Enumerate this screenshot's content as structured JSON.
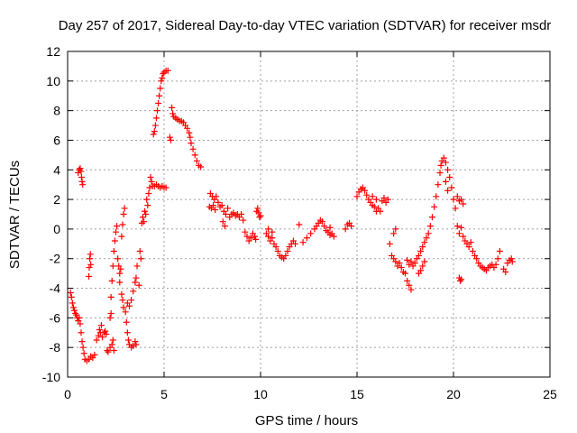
{
  "chart_data": {
    "type": "scatter",
    "title": "Day 257 of 2017, Sidereal Day-to-day VTEC variation (SDTVAR) for receiver msdr",
    "xlabel": "GPS time / hours",
    "ylabel": "SDTVAR / TECUs",
    "xlim": [
      0,
      25
    ],
    "ylim": [
      -10,
      12
    ],
    "xticks": [
      0,
      5,
      10,
      15,
      20,
      25
    ],
    "yticks": [
      -10,
      -8,
      -6,
      -4,
      -2,
      0,
      2,
      4,
      6,
      8,
      10,
      12
    ],
    "grid": true,
    "marker": "+",
    "color": "#ff0000",
    "series": [
      {
        "name": "SDTVAR",
        "points": [
          [
            0.15,
            -4.3
          ],
          [
            0.2,
            -4.6
          ],
          [
            0.25,
            -5.0
          ],
          [
            0.3,
            -5.3
          ],
          [
            0.35,
            -5.5
          ],
          [
            0.4,
            -5.7
          ],
          [
            0.45,
            -5.8
          ],
          [
            0.5,
            -6.0
          ],
          [
            0.55,
            -6.2
          ],
          [
            0.6,
            -6.0
          ],
          [
            0.65,
            -6.4
          ],
          [
            0.7,
            -7.0
          ],
          [
            0.75,
            -7.6
          ],
          [
            0.8,
            -8.0
          ],
          [
            0.85,
            -8.4
          ],
          [
            0.9,
            -8.8
          ],
          [
            1.0,
            -8.9
          ],
          [
            1.1,
            -8.8
          ],
          [
            1.2,
            -8.6
          ],
          [
            1.3,
            -8.7
          ],
          [
            1.4,
            -8.5
          ],
          [
            0.55,
            3.8
          ],
          [
            0.6,
            4.0
          ],
          [
            0.65,
            4.1
          ],
          [
            0.7,
            3.9
          ],
          [
            0.72,
            3.5
          ],
          [
            0.75,
            3.2
          ],
          [
            0.78,
            3.0
          ],
          [
            1.1,
            -3.2
          ],
          [
            1.12,
            -2.6
          ],
          [
            1.15,
            -2.0
          ],
          [
            1.18,
            -1.7
          ],
          [
            1.2,
            -2.4
          ],
          [
            1.5,
            -7.5
          ],
          [
            1.6,
            -7.2
          ],
          [
            1.65,
            -6.8
          ],
          [
            1.7,
            -7.0
          ],
          [
            1.75,
            -6.5
          ],
          [
            1.8,
            -7.3
          ],
          [
            1.9,
            -7.0
          ],
          [
            1.95,
            -6.9
          ],
          [
            2.0,
            -7.1
          ],
          [
            2.05,
            -8.2
          ],
          [
            2.1,
            -8.3
          ],
          [
            2.2,
            -8.0
          ],
          [
            2.3,
            -7.8
          ],
          [
            2.35,
            -7.5
          ],
          [
            2.4,
            -8.2
          ],
          [
            2.2,
            -6.0
          ],
          [
            2.25,
            -5.7
          ],
          [
            2.25,
            -4.6
          ],
          [
            2.3,
            -3.5
          ],
          [
            2.35,
            -2.5
          ],
          [
            2.4,
            -1.5
          ],
          [
            2.45,
            -0.8
          ],
          [
            2.5,
            -0.2
          ],
          [
            2.55,
            0.2
          ],
          [
            2.6,
            -2.0
          ],
          [
            2.65,
            -2.5
          ],
          [
            2.7,
            -3.0
          ],
          [
            2.75,
            -2.7
          ],
          [
            2.8,
            -0.5
          ],
          [
            2.85,
            0.3
          ],
          [
            2.9,
            1.0
          ],
          [
            2.95,
            1.4
          ],
          [
            2.7,
            -3.6
          ],
          [
            2.8,
            -4.4
          ],
          [
            2.85,
            -4.8
          ],
          [
            2.9,
            -5.3
          ],
          [
            3.0,
            -5.6
          ],
          [
            3.05,
            -6.3
          ],
          [
            3.1,
            -7.0
          ],
          [
            3.15,
            -7.5
          ],
          [
            3.2,
            -7.8
          ],
          [
            3.3,
            -8.0
          ],
          [
            3.4,
            -7.9
          ],
          [
            3.5,
            -7.6
          ],
          [
            3.55,
            -7.8
          ],
          [
            3.1,
            -5.0
          ],
          [
            3.2,
            -5.2
          ],
          [
            3.3,
            -4.8
          ],
          [
            3.4,
            -4.2
          ],
          [
            3.5,
            -3.6
          ],
          [
            3.55,
            -3.3
          ],
          [
            3.6,
            -2.5
          ],
          [
            3.7,
            -3.8
          ],
          [
            3.75,
            -1.5
          ],
          [
            3.8,
            -2.0
          ],
          [
            3.85,
            0.4
          ],
          [
            3.9,
            0.8
          ],
          [
            3.95,
            0.5
          ],
          [
            4.0,
            1.2
          ],
          [
            4.05,
            1.0
          ],
          [
            4.1,
            2.0
          ],
          [
            4.15,
            1.6
          ],
          [
            4.2,
            2.4
          ],
          [
            4.25,
            2.8
          ],
          [
            4.3,
            3.5
          ],
          [
            4.35,
            3.2
          ],
          [
            4.4,
            2.9
          ],
          [
            4.5,
            2.9
          ],
          [
            4.6,
            3.0
          ],
          [
            4.7,
            2.9
          ],
          [
            4.8,
            2.8
          ],
          [
            4.9,
            2.9
          ],
          [
            5.0,
            2.8
          ],
          [
            5.1,
            2.8
          ],
          [
            4.45,
            6.4
          ],
          [
            4.5,
            6.6
          ],
          [
            4.55,
            7.0
          ],
          [
            4.6,
            7.5
          ],
          [
            4.65,
            8.0
          ],
          [
            4.7,
            8.5
          ],
          [
            4.75,
            9.0
          ],
          [
            4.8,
            9.5
          ],
          [
            4.85,
            10.0
          ],
          [
            4.9,
            10.2
          ],
          [
            4.95,
            10.5
          ],
          [
            5.0,
            10.6
          ],
          [
            5.1,
            10.7
          ],
          [
            5.2,
            10.7
          ],
          [
            5.3,
            6.2
          ],
          [
            5.35,
            6.0
          ],
          [
            5.4,
            8.2
          ],
          [
            5.45,
            7.8
          ],
          [
            5.5,
            7.6
          ],
          [
            5.6,
            7.5
          ],
          [
            5.7,
            7.4
          ],
          [
            5.8,
            7.3
          ],
          [
            5.9,
            7.3
          ],
          [
            6.0,
            7.2
          ],
          [
            6.1,
            7.0
          ],
          [
            6.2,
            6.8
          ],
          [
            6.3,
            6.5
          ],
          [
            6.35,
            6.2
          ],
          [
            6.4,
            5.8
          ],
          [
            6.5,
            5.4
          ],
          [
            6.6,
            5.0
          ],
          [
            6.7,
            4.6
          ],
          [
            6.8,
            4.3
          ],
          [
            6.9,
            4.2
          ],
          [
            7.4,
            2.4
          ],
          [
            7.5,
            2.2
          ],
          [
            7.6,
            2.0
          ],
          [
            7.7,
            2.2
          ],
          [
            7.8,
            1.8
          ],
          [
            7.9,
            1.5
          ],
          [
            8.0,
            1.6
          ],
          [
            8.1,
            1.2
          ],
          [
            8.2,
            1.0
          ],
          [
            8.3,
            1.4
          ],
          [
            8.4,
            0.8
          ],
          [
            8.5,
            1.0
          ],
          [
            8.6,
            1.1
          ],
          [
            8.7,
            0.9
          ],
          [
            8.8,
            1.0
          ],
          [
            8.9,
            0.8
          ],
          [
            9.0,
            1.0
          ],
          [
            9.1,
            0.6
          ],
          [
            9.2,
            -0.2
          ],
          [
            9.3,
            -0.5
          ],
          [
            9.4,
            -0.8
          ],
          [
            9.5,
            -0.6
          ],
          [
            9.6,
            -0.3
          ],
          [
            7.35,
            1.5
          ],
          [
            7.45,
            1.4
          ],
          [
            7.55,
            1.6
          ],
          [
            7.65,
            1.3
          ],
          [
            8.05,
            0.5
          ],
          [
            8.15,
            0.2
          ],
          [
            9.8,
            1.2
          ],
          [
            9.85,
            1.4
          ],
          [
            9.9,
            1.1
          ],
          [
            9.95,
            0.8
          ],
          [
            10.0,
            0.9
          ],
          [
            9.7,
            -0.5
          ],
          [
            9.75,
            -0.7
          ],
          [
            10.3,
            -0.3
          ],
          [
            10.4,
            -0.5
          ],
          [
            10.5,
            -0.8
          ],
          [
            10.6,
            -0.6
          ],
          [
            10.7,
            -1.0
          ],
          [
            10.8,
            -1.2
          ],
          [
            10.9,
            -1.5
          ],
          [
            11.0,
            -1.8
          ],
          [
            11.1,
            -1.9
          ],
          [
            11.2,
            -2.0
          ],
          [
            11.3,
            -1.8
          ],
          [
            11.4,
            -1.5
          ],
          [
            11.5,
            -1.2
          ],
          [
            11.6,
            -1.0
          ],
          [
            11.7,
            -0.8
          ],
          [
            11.8,
            -1.0
          ],
          [
            12.0,
            0.3
          ],
          [
            10.4,
            0.0
          ],
          [
            10.6,
            -0.2
          ],
          [
            12.2,
            -0.9
          ],
          [
            12.4,
            -0.6
          ],
          [
            12.6,
            -0.3
          ],
          [
            12.8,
            0.0
          ],
          [
            12.9,
            0.2
          ],
          [
            13.0,
            0.4
          ],
          [
            13.1,
            0.6
          ],
          [
            13.2,
            0.5
          ],
          [
            13.3,
            0.2
          ],
          [
            13.4,
            -0.1
          ],
          [
            13.5,
            -0.2
          ],
          [
            13.6,
            -0.4
          ],
          [
            13.7,
            -0.3
          ],
          [
            13.8,
            -0.5
          ],
          [
            13.6,
            0.1
          ],
          [
            14.4,
            0.0
          ],
          [
            14.5,
            0.3
          ],
          [
            14.6,
            0.4
          ],
          [
            14.7,
            0.2
          ],
          [
            15.0,
            2.2
          ],
          [
            15.1,
            2.5
          ],
          [
            15.2,
            2.7
          ],
          [
            15.3,
            2.8
          ],
          [
            15.4,
            2.6
          ],
          [
            15.5,
            2.3
          ],
          [
            15.6,
            2.0
          ],
          [
            15.7,
            1.8
          ],
          [
            15.8,
            1.6
          ],
          [
            15.9,
            1.5
          ],
          [
            16.0,
            1.2
          ],
          [
            16.1,
            1.4
          ],
          [
            16.2,
            1.2
          ],
          [
            16.3,
            1.9
          ],
          [
            16.4,
            2.1
          ],
          [
            16.5,
            1.8
          ],
          [
            16.6,
            2.0
          ],
          [
            15.8,
            2.2
          ],
          [
            16.0,
            2.0
          ],
          [
            16.7,
            -1.0
          ],
          [
            16.8,
            -1.8
          ],
          [
            16.9,
            -2.0
          ],
          [
            17.0,
            -2.2
          ],
          [
            17.1,
            -2.5
          ],
          [
            17.2,
            -2.3
          ],
          [
            17.3,
            -2.6
          ],
          [
            17.4,
            -2.9
          ],
          [
            17.5,
            -3.0
          ],
          [
            17.6,
            -3.5
          ],
          [
            17.7,
            -3.8
          ],
          [
            17.8,
            -4.1
          ],
          [
            17.6,
            -2.1
          ],
          [
            17.7,
            -2.4
          ],
          [
            17.8,
            -2.2
          ],
          [
            17.9,
            -2.5
          ],
          [
            18.0,
            -2.3
          ],
          [
            18.1,
            -2.0
          ],
          [
            18.2,
            -1.8
          ],
          [
            18.3,
            -1.5
          ],
          [
            18.4,
            -1.2
          ],
          [
            18.5,
            -0.9
          ],
          [
            18.6,
            -0.6
          ],
          [
            18.7,
            -0.3
          ],
          [
            16.9,
            -0.3
          ],
          [
            17.0,
            0.0
          ],
          [
            18.2,
            -3.0
          ],
          [
            18.3,
            -2.8
          ],
          [
            18.4,
            -2.5
          ],
          [
            18.5,
            -2.2
          ],
          [
            18.8,
            0.2
          ],
          [
            18.9,
            0.8
          ],
          [
            19.0,
            1.5
          ],
          [
            19.1,
            2.2
          ],
          [
            19.2,
            3.0
          ],
          [
            19.3,
            3.8
          ],
          [
            19.35,
            4.3
          ],
          [
            19.4,
            4.6
          ],
          [
            19.5,
            4.8
          ],
          [
            19.6,
            4.5
          ],
          [
            19.7,
            4.0
          ],
          [
            19.8,
            3.5
          ],
          [
            19.9,
            2.8
          ],
          [
            20.0,
            2.0
          ],
          [
            20.1,
            1.4
          ],
          [
            19.6,
            3.2
          ],
          [
            19.7,
            2.6
          ],
          [
            20.2,
            2.2
          ],
          [
            20.3,
            1.9
          ],
          [
            20.4,
            2.0
          ],
          [
            20.5,
            1.7
          ],
          [
            20.2,
            0.2
          ],
          [
            20.3,
            -0.3
          ],
          [
            20.4,
            0.1
          ],
          [
            20.5,
            -0.5
          ],
          [
            20.6,
            -0.8
          ],
          [
            20.7,
            -1.0
          ],
          [
            20.8,
            -1.2
          ],
          [
            20.9,
            -0.9
          ],
          [
            20.3,
            -3.3
          ],
          [
            20.35,
            -3.5
          ],
          [
            20.4,
            -3.4
          ],
          [
            21.0,
            -1.5
          ],
          [
            21.1,
            -1.8
          ],
          [
            21.2,
            -2.0
          ],
          [
            21.3,
            -2.3
          ],
          [
            21.4,
            -2.5
          ],
          [
            21.5,
            -2.6
          ],
          [
            21.6,
            -2.7
          ],
          [
            21.7,
            -2.8
          ],
          [
            21.8,
            -2.6
          ],
          [
            21.9,
            -2.5
          ],
          [
            22.0,
            -2.4
          ],
          [
            22.1,
            -2.6
          ],
          [
            22.2,
            -2.4
          ],
          [
            22.3,
            -2.0
          ],
          [
            22.4,
            -1.5
          ],
          [
            22.6,
            -2.7
          ],
          [
            22.7,
            -2.9
          ],
          [
            22.8,
            -2.3
          ],
          [
            22.9,
            -2.1
          ],
          [
            23.0,
            -2.0
          ],
          [
            23.05,
            -2.2
          ]
        ]
      }
    ]
  }
}
